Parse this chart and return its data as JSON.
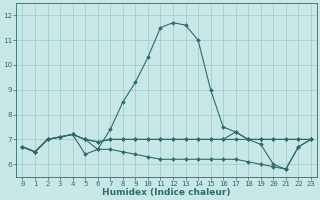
{
  "xlabel": "Humidex (Indice chaleur)",
  "xlim": [
    -0.5,
    23.5
  ],
  "ylim": [
    5.5,
    12.5
  ],
  "xticks": [
    0,
    1,
    2,
    3,
    4,
    5,
    6,
    7,
    8,
    9,
    10,
    11,
    12,
    13,
    14,
    15,
    16,
    17,
    18,
    19,
    20,
    21,
    22,
    23
  ],
  "yticks": [
    6,
    7,
    8,
    9,
    10,
    11,
    12
  ],
  "bg_color": "#c8e8e8",
  "line_color": "#2e6b6b",
  "grid_color": "#a0c8c8",
  "series": [
    [
      6.7,
      6.5,
      7.0,
      7.1,
      7.2,
      7.0,
      6.6,
      7.4,
      8.5,
      9.3,
      10.3,
      11.5,
      11.7,
      11.6,
      11.0,
      9.0,
      7.5,
      7.3,
      7.0,
      6.8,
      6.0,
      5.8,
      6.7,
      7.0
    ],
    [
      6.7,
      6.5,
      7.0,
      7.1,
      7.2,
      7.0,
      6.9,
      7.0,
      7.0,
      7.0,
      7.0,
      7.0,
      7.0,
      7.0,
      7.0,
      7.0,
      7.0,
      7.3,
      7.0,
      7.0,
      7.0,
      7.0,
      7.0,
      7.0
    ],
    [
      6.7,
      6.5,
      7.0,
      7.1,
      7.2,
      7.0,
      6.9,
      7.0,
      7.0,
      7.0,
      7.0,
      7.0,
      7.0,
      7.0,
      7.0,
      7.0,
      7.0,
      7.0,
      7.0,
      7.0,
      7.0,
      7.0,
      7.0,
      7.0
    ],
    [
      6.7,
      6.5,
      7.0,
      7.1,
      7.2,
      6.4,
      6.6,
      6.6,
      6.5,
      6.4,
      6.3,
      6.2,
      6.2,
      6.2,
      6.2,
      6.2,
      6.2,
      6.2,
      6.1,
      6.0,
      5.9,
      5.8,
      6.7,
      7.0
    ]
  ],
  "tick_fontsize": 5.2,
  "label_fontsize": 6.5,
  "marker_size": 2.0,
  "line_width": 0.8
}
